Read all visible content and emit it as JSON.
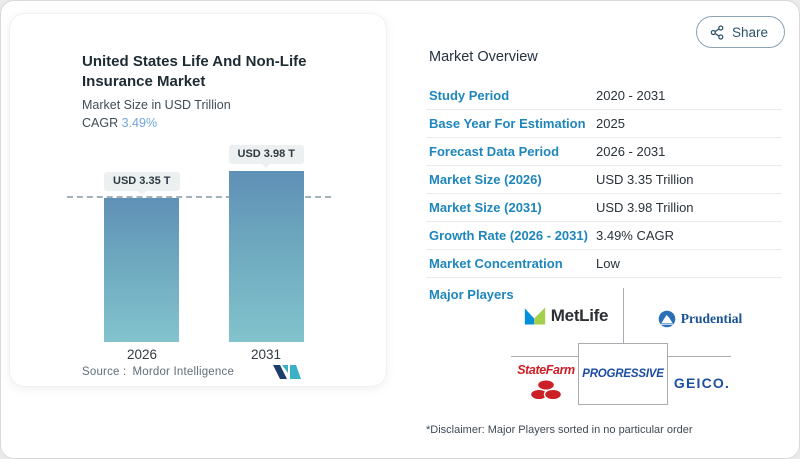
{
  "header": {
    "share_label": "Share"
  },
  "card": {
    "title": "United States Life And Non-Life Insurance Market",
    "subtitle": "Market Size in USD Trillion",
    "cagr_label": "CAGR",
    "cagr_value": "3.49%",
    "source_label": "Source :",
    "source_value": "Mordor Intelligence"
  },
  "chart_data": {
    "type": "bar",
    "title": "United States Life And Non-Life Insurance Market",
    "ylabel": "Market Size in USD Trillion",
    "categories": [
      "2026",
      "2031"
    ],
    "values": [
      3.35,
      3.98
    ],
    "bar_labels": [
      "USD 3.35 T",
      "USD 3.98 T"
    ],
    "unit": "USD Trillion",
    "reference_line": 3.35,
    "ylim": [
      0,
      4.6
    ],
    "grid": false,
    "legend": false,
    "bar_color_top": "#5f90b6",
    "bar_color_bottom": "#82c3cd"
  },
  "overview": {
    "heading": "Market Overview",
    "rows": [
      {
        "label": "Study Period",
        "value": "2020 - 2031"
      },
      {
        "label": "Base Year For Estimation",
        "value": "2025"
      },
      {
        "label": "Forecast Data Period",
        "value": "2026 - 2031"
      },
      {
        "label": "Market Size (2026)",
        "value": "USD 3.35 Trillion"
      },
      {
        "label": "Market Size (2031)",
        "value": "USD 3.98 Trillion"
      },
      {
        "label": "Growth Rate (2026 - 2031)",
        "value": "3.49% CAGR"
      },
      {
        "label": "Market Concentration",
        "value": "Low"
      }
    ],
    "major_players_label": "Major Players",
    "players": [
      {
        "name": "MetLife",
        "wordmark": "MetLife"
      },
      {
        "name": "Prudential",
        "wordmark": "Prudential"
      },
      {
        "name": "State Farm",
        "wordmark": "StateFarm"
      },
      {
        "name": "Progressive",
        "wordmark": "PROGRESSIVE"
      },
      {
        "name": "GEICO",
        "wordmark": "GEICO."
      }
    ],
    "disclaimer": "*Disclaimer: Major Players sorted in no particular order"
  },
  "colors": {
    "label_blue": "#1e86bd",
    "cagr_blue": "#6fa6d9",
    "statefarm_red": "#cc2027",
    "geico_blue": "#1e50a0",
    "prudential_blue": "#1a5296",
    "progressive_blue": "#1b4da2"
  }
}
